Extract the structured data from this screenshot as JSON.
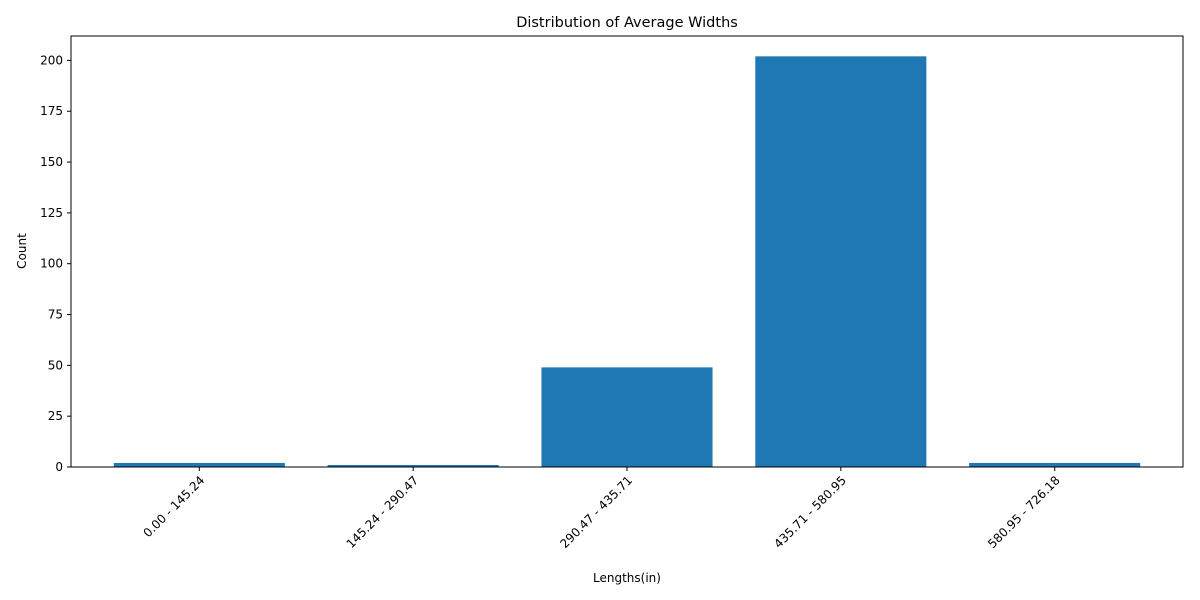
{
  "chart_data": {
    "type": "bar",
    "title": "Distribution of Average Widths",
    "xlabel": "Lengths(in)",
    "ylabel": "Count",
    "categories": [
      "0.00 - 145.24",
      "145.24 - 290.47",
      "290.47 - 435.71",
      "435.71 - 580.95",
      "580.95 - 726.18"
    ],
    "values": [
      2,
      1,
      49,
      202,
      2
    ],
    "ylim": [
      0,
      212
    ],
    "yticks": [
      0,
      25,
      50,
      75,
      100,
      125,
      150,
      175,
      200
    ],
    "bar_color": "#1f77b4",
    "grid": false,
    "legend": "none"
  }
}
